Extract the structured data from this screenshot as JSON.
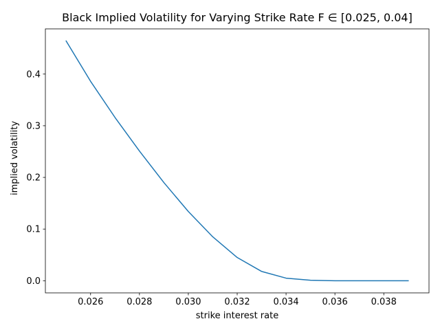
{
  "chart_data": {
    "type": "line",
    "title": "Black Implied Volatility for Varying Strike Rate F ∈ [0.025, 0.04]",
    "xlabel": "strike interest rate",
    "ylabel": "implied volatility",
    "xlim": [
      0.02415,
      0.03985
    ],
    "ylim": [
      -0.0235,
      0.4875
    ],
    "x_ticks": [
      0.026,
      0.028,
      0.03,
      0.032,
      0.034,
      0.036,
      0.038
    ],
    "x_tick_labels": [
      "0.026",
      "0.028",
      "0.030",
      "0.032",
      "0.034",
      "0.036",
      "0.038"
    ],
    "y_ticks": [
      0.0,
      0.1,
      0.2,
      0.3,
      0.4
    ],
    "y_tick_labels": [
      "0.0",
      "0.1",
      "0.2",
      "0.3",
      "0.4"
    ],
    "grid": false,
    "series": [
      {
        "color": "#1f77b4",
        "x": [
          0.025,
          0.026,
          0.027,
          0.028,
          0.029,
          0.03,
          0.031,
          0.032,
          0.033,
          0.034,
          0.035,
          0.036,
          0.037,
          0.038,
          0.039
        ],
        "y": [
          0.464,
          0.386,
          0.316,
          0.251,
          0.19,
          0.134,
          0.085,
          0.045,
          0.018,
          0.005,
          0.001,
          0.0,
          0.0,
          0.0,
          0.0
        ]
      }
    ]
  }
}
